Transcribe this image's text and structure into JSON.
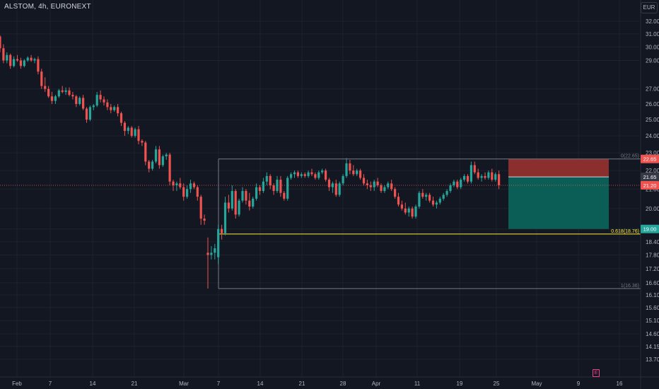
{
  "header": {
    "title": "ALSTOM, 4h, EURONEXT",
    "currency": "EUR"
  },
  "event_badge": "E",
  "colors": {
    "background": "#131722",
    "up": "#26a69a",
    "down": "#ef5350",
    "grid": "#1e222d",
    "axis_text": "#b2b5be",
    "fib_line": "#787b86",
    "fib_618": "#ffeb3b",
    "price_line": "#ef5350",
    "stop_zone": "#8b2e2e",
    "target_zone": "#0b5e56"
  },
  "chart_data": {
    "type": "candlestick",
    "y_axis": {
      "scale": "log",
      "ylim": [
        13.5,
        33.5
      ],
      "tick_labels": [
        "32.00",
        "31.00",
        "30.00",
        "29.00",
        "27.00",
        "26.00",
        "25.00",
        "24.00",
        "23.00",
        "22.00",
        "21.00",
        "20.00",
        "19.00",
        "18.40",
        "17.80",
        "17.20",
        "16.60",
        "16.10",
        "15.60",
        "15.10",
        "14.60",
        "14.15",
        "13.70"
      ]
    },
    "x_axis": {
      "tick_labels": [
        "Feb",
        "7",
        "14",
        "21",
        "Mar",
        "7",
        "14",
        "21",
        "28",
        "Apr",
        "11",
        "19",
        "25",
        "May",
        "9",
        "16"
      ]
    },
    "candles": [
      [
        30.8,
        30.9,
        29.6,
        29.9
      ],
      [
        29.9,
        30.2,
        28.8,
        29.0
      ],
      [
        29.0,
        29.6,
        28.8,
        29.4
      ],
      [
        29.4,
        29.5,
        28.4,
        28.6
      ],
      [
        28.6,
        29.3,
        28.5,
        29.1
      ],
      [
        29.1,
        29.4,
        28.9,
        29.0
      ],
      [
        29.0,
        29.2,
        28.4,
        28.6
      ],
      [
        28.6,
        29.1,
        28.5,
        29.0
      ],
      [
        29.0,
        29.3,
        28.9,
        29.2
      ],
      [
        29.2,
        29.4,
        28.9,
        29.0
      ],
      [
        29.0,
        29.2,
        28.8,
        29.1
      ],
      [
        29.1,
        29.3,
        28.0,
        28.2
      ],
      [
        28.2,
        28.4,
        27.0,
        27.2
      ],
      [
        27.2,
        27.8,
        26.8,
        27.0
      ],
      [
        27.0,
        27.2,
        26.4,
        26.5
      ],
      [
        26.5,
        26.8,
        26.0,
        26.2
      ],
      [
        26.2,
        26.6,
        26.0,
        26.5
      ],
      [
        26.5,
        27.0,
        26.4,
        26.9
      ],
      [
        26.9,
        27.2,
        26.7,
        26.8
      ],
      [
        26.8,
        27.1,
        26.6,
        26.9
      ],
      [
        26.9,
        27.1,
        26.5,
        26.6
      ],
      [
        26.6,
        26.8,
        26.3,
        26.5
      ],
      [
        26.5,
        26.6,
        25.8,
        26.0
      ],
      [
        26.0,
        26.5,
        25.9,
        26.4
      ],
      [
        26.4,
        26.6,
        25.6,
        25.7
      ],
      [
        25.7,
        25.8,
        24.8,
        25.0
      ],
      [
        25.0,
        25.9,
        24.9,
        25.8
      ],
      [
        25.8,
        26.0,
        25.6,
        25.9
      ],
      [
        25.9,
        26.8,
        25.8,
        26.6
      ],
      [
        26.6,
        26.9,
        26.1,
        26.3
      ],
      [
        26.3,
        26.5,
        25.9,
        26.1
      ],
      [
        26.1,
        26.3,
        25.6,
        25.8
      ],
      [
        25.8,
        26.0,
        25.4,
        25.6
      ],
      [
        25.6,
        25.9,
        25.5,
        25.8
      ],
      [
        25.8,
        26.0,
        25.2,
        25.4
      ],
      [
        25.4,
        25.5,
        24.6,
        24.8
      ],
      [
        24.8,
        24.9,
        24.0,
        24.3
      ],
      [
        24.3,
        24.6,
        24.1,
        24.5
      ],
      [
        24.5,
        24.6,
        23.9,
        24.0
      ],
      [
        24.0,
        24.5,
        23.9,
        24.4
      ],
      [
        24.4,
        24.6,
        23.5,
        23.7
      ],
      [
        23.7,
        23.8,
        23.4,
        23.6
      ],
      [
        23.6,
        23.7,
        22.3,
        22.5
      ],
      [
        22.5,
        22.6,
        21.9,
        22.1
      ],
      [
        22.1,
        22.6,
        22.0,
        22.5
      ],
      [
        22.5,
        23.4,
        22.4,
        23.2
      ],
      [
        23.2,
        23.4,
        22.1,
        22.3
      ],
      [
        22.3,
        22.9,
        22.2,
        22.8
      ],
      [
        22.8,
        23.0,
        22.6,
        22.9
      ],
      [
        22.9,
        23.0,
        21.2,
        21.4
      ],
      [
        21.4,
        21.5,
        20.9,
        21.2
      ],
      [
        21.2,
        21.4,
        20.9,
        21.3
      ],
      [
        21.3,
        21.6,
        21.0,
        21.1
      ],
      [
        21.1,
        21.3,
        20.4,
        20.6
      ],
      [
        20.6,
        21.2,
        20.5,
        21.0
      ],
      [
        21.0,
        21.5,
        20.8,
        21.3
      ],
      [
        21.3,
        21.4,
        21.0,
        21.1
      ],
      [
        21.1,
        21.2,
        20.4,
        20.6
      ],
      [
        20.6,
        20.7,
        19.2,
        19.5
      ],
      [
        19.5,
        19.7,
        19.2,
        19.4
      ],
      [
        17.9,
        18.6,
        16.36,
        17.8
      ],
      [
        17.8,
        18.2,
        17.6,
        17.9
      ],
      [
        17.9,
        18.3,
        17.6,
        18.1
      ],
      [
        17.7,
        19.2,
        17.4,
        19.0
      ],
      [
        19.0,
        19.2,
        18.5,
        18.8
      ],
      [
        18.8,
        20.6,
        18.7,
        20.3
      ],
      [
        20.3,
        20.7,
        19.8,
        20.0
      ],
      [
        20.0,
        21.2,
        19.9,
        20.9
      ],
      [
        20.9,
        21.0,
        19.5,
        19.7
      ],
      [
        19.7,
        20.5,
        19.6,
        20.4
      ],
      [
        20.4,
        21.1,
        20.3,
        20.9
      ],
      [
        20.9,
        21.0,
        20.2,
        20.4
      ],
      [
        20.4,
        20.8,
        19.9,
        20.1
      ],
      [
        20.1,
        20.6,
        20.0,
        20.5
      ],
      [
        20.5,
        21.3,
        20.4,
        21.1
      ],
      [
        21.1,
        21.2,
        20.7,
        20.9
      ],
      [
        20.9,
        21.6,
        20.8,
        21.4
      ],
      [
        21.4,
        21.9,
        21.2,
        21.7
      ],
      [
        21.7,
        21.8,
        21.0,
        21.2
      ],
      [
        21.2,
        21.3,
        20.7,
        20.9
      ],
      [
        20.9,
        21.7,
        20.8,
        21.5
      ],
      [
        21.5,
        21.7,
        20.6,
        20.8
      ],
      [
        20.8,
        20.9,
        20.4,
        20.5
      ],
      [
        20.5,
        21.7,
        20.4,
        21.6
      ],
      [
        21.6,
        21.9,
        21.5,
        21.8
      ],
      [
        21.8,
        22.0,
        21.6,
        21.9
      ],
      [
        21.9,
        22.0,
        21.6,
        21.7
      ],
      [
        21.7,
        21.9,
        21.6,
        21.8
      ],
      [
        21.8,
        21.9,
        21.6,
        21.7
      ],
      [
        21.7,
        22.0,
        21.6,
        21.9
      ],
      [
        21.9,
        22.1,
        21.7,
        21.8
      ],
      [
        21.8,
        21.9,
        21.5,
        21.6
      ],
      [
        21.6,
        22.0,
        21.5,
        21.9
      ],
      [
        21.9,
        22.1,
        21.8,
        22.0
      ],
      [
        22.0,
        22.1,
        21.4,
        21.5
      ],
      [
        21.5,
        21.6,
        20.9,
        21.1
      ],
      [
        21.1,
        21.4,
        20.8,
        21.3
      ],
      [
        21.3,
        21.5,
        20.6,
        20.7
      ],
      [
        20.7,
        21.4,
        20.6,
        21.3
      ],
      [
        21.3,
        21.8,
        21.2,
        21.7
      ],
      [
        21.7,
        22.7,
        21.6,
        22.4
      ],
      [
        22.4,
        22.6,
        21.8,
        22.0
      ],
      [
        22.0,
        22.3,
        21.7,
        21.8
      ],
      [
        21.8,
        22.1,
        21.7,
        22.0
      ],
      [
        22.0,
        22.1,
        21.5,
        21.6
      ],
      [
        21.6,
        21.8,
        21.2,
        21.3
      ],
      [
        21.3,
        21.5,
        21.0,
        21.2
      ],
      [
        21.2,
        21.4,
        20.9,
        21.1
      ],
      [
        21.1,
        21.5,
        20.9,
        21.4
      ],
      [
        21.4,
        21.6,
        21.1,
        21.2
      ],
      [
        21.2,
        21.3,
        20.8,
        20.9
      ],
      [
        20.9,
        21.2,
        20.8,
        21.1
      ],
      [
        21.1,
        21.4,
        21.0,
        21.3
      ],
      [
        21.3,
        21.5,
        20.9,
        21.0
      ],
      [
        21.0,
        21.1,
        20.5,
        20.6
      ],
      [
        20.6,
        20.8,
        20.1,
        20.2
      ],
      [
        20.2,
        20.4,
        19.9,
        20.0
      ],
      [
        20.0,
        20.3,
        19.7,
        19.8
      ],
      [
        19.8,
        20.1,
        19.6,
        20.0
      ],
      [
        20.0,
        20.1,
        19.5,
        19.6
      ],
      [
        19.6,
        20.2,
        19.5,
        20.1
      ],
      [
        20.1,
        20.9,
        20.0,
        20.8
      ],
      [
        20.8,
        21.0,
        20.5,
        20.6
      ],
      [
        20.6,
        20.8,
        20.4,
        20.7
      ],
      [
        20.7,
        20.8,
        20.3,
        20.4
      ],
      [
        20.4,
        20.6,
        20.1,
        20.2
      ],
      [
        20.2,
        20.4,
        20.0,
        20.3
      ],
      [
        20.3,
        20.6,
        20.2,
        20.5
      ],
      [
        20.5,
        20.8,
        20.4,
        20.7
      ],
      [
        20.7,
        21.0,
        20.6,
        20.9
      ],
      [
        20.9,
        21.3,
        20.8,
        21.2
      ],
      [
        21.2,
        21.5,
        21.1,
        21.4
      ],
      [
        21.4,
        21.5,
        21.0,
        21.1
      ],
      [
        21.1,
        21.6,
        21.0,
        21.5
      ],
      [
        21.5,
        21.8,
        21.4,
        21.7
      ],
      [
        21.7,
        21.8,
        21.3,
        21.4
      ],
      [
        21.4,
        22.5,
        21.3,
        22.3
      ],
      [
        22.3,
        22.5,
        21.8,
        21.9
      ],
      [
        21.9,
        22.1,
        21.5,
        21.6
      ],
      [
        21.6,
        21.8,
        21.4,
        21.7
      ],
      [
        21.7,
        21.9,
        21.5,
        21.6
      ],
      [
        21.6,
        22.0,
        21.5,
        21.9
      ],
      [
        21.9,
        22.1,
        21.4,
        21.5
      ],
      [
        21.5,
        21.9,
        21.4,
        21.8
      ],
      [
        21.8,
        22.0,
        21.0,
        21.2
      ]
    ],
    "horizontal_levels": {
      "fib_0": {
        "label": "0(22.65)",
        "value": 22.65
      },
      "fib_618": {
        "label": "0.618(18.76)",
        "value": 18.76
      },
      "fib_1": {
        "label": "1(16.36)",
        "value": 16.36
      }
    },
    "position": {
      "stop": 22.65,
      "entry": 21.65,
      "target": 19.0
    },
    "price_badges": [
      {
        "label": "22.65",
        "value": 22.65,
        "color": "#ef5350"
      },
      {
        "label": "21.65",
        "value": 21.65,
        "color": "#363a45"
      },
      {
        "label": "21.20",
        "value": 21.2,
        "color": "#ef5350"
      },
      {
        "label": "19.00",
        "value": 19.0,
        "color": "#26a69a"
      }
    ],
    "grid": true,
    "legend": "none"
  }
}
